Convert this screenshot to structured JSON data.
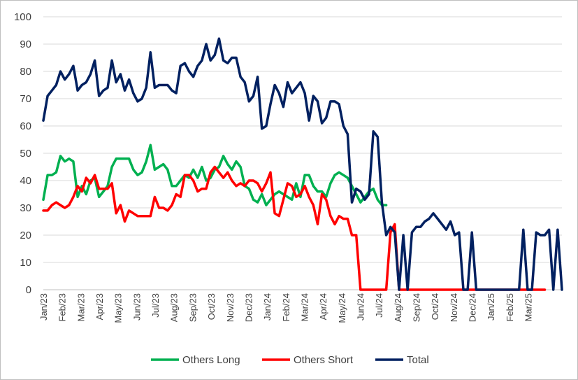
{
  "chart_data": {
    "type": "line",
    "title": "",
    "xlabel": "",
    "ylabel": "",
    "ylim": [
      0,
      100
    ],
    "yticks": [
      0,
      10,
      20,
      30,
      40,
      50,
      60,
      70,
      80,
      90,
      100
    ],
    "month_labels": [
      "Jan/23",
      "Feb/23",
      "Mar/23",
      "Apr/23",
      "May/23",
      "Jun/23",
      "Jul/23",
      "Aug/23",
      "Sep/23",
      "Oct/23",
      "Nov/23",
      "Dec/23",
      "Jan/24",
      "Feb/24",
      "Mar/24",
      "Apr/24",
      "May/24",
      "Jun/24",
      "Jul/24",
      "Aug/24",
      "Sep/24",
      "Oct/24",
      "Nov/24",
      "Dec/24",
      "Jan/25",
      "Feb/25",
      "Mar/25"
    ],
    "weeks_per_month": 4.35,
    "legend_position": "bottom",
    "grid": true,
    "series": [
      {
        "name": "Others Long",
        "color": "#00b050",
        "values": [
          33,
          42,
          42,
          43,
          49,
          47,
          48,
          47,
          34,
          38,
          35,
          40,
          41,
          34,
          36,
          38,
          45,
          48,
          48,
          48,
          48,
          44,
          42,
          43,
          47,
          53,
          44,
          45,
          46,
          44,
          38,
          38,
          40,
          42,
          41,
          44,
          41,
          45,
          40,
          41,
          44,
          45,
          49,
          46,
          44,
          47,
          45,
          38,
          37,
          33,
          32,
          35,
          31,
          33,
          35,
          36,
          35,
          34,
          33,
          39,
          34,
          42,
          42,
          38,
          36,
          36,
          34,
          39,
          42,
          43,
          42,
          41,
          38,
          35,
          32,
          34,
          36,
          37,
          33,
          31,
          31
        ]
      },
      {
        "name": "Others Short",
        "color": "#ff0000",
        "values": [
          29,
          29,
          31,
          32,
          31,
          30,
          31,
          34,
          38,
          36,
          41,
          39,
          42,
          37,
          37,
          37,
          39,
          28,
          31,
          25,
          29,
          28,
          27,
          27,
          27,
          27,
          34,
          30,
          30,
          29,
          31,
          35,
          34,
          42,
          42,
          40,
          36,
          37,
          37,
          43,
          45,
          43,
          41,
          43,
          40,
          38,
          39,
          38,
          40,
          40,
          39,
          36,
          39,
          43,
          28,
          27,
          33,
          39,
          38,
          34,
          35,
          38,
          34,
          31,
          24,
          35,
          33,
          27,
          24,
          27,
          26,
          26,
          20,
          20,
          0,
          0,
          0,
          0,
          0,
          0,
          0,
          21,
          24,
          0,
          0,
          0,
          0,
          0,
          0,
          0,
          0,
          0,
          0,
          0,
          0,
          0,
          0,
          0,
          0,
          0,
          0,
          0,
          0,
          0,
          0,
          0,
          0,
          0,
          0,
          0,
          0,
          0,
          0,
          0,
          0,
          0,
          0,
          0
        ]
      },
      {
        "name": "Total",
        "color": "#002060",
        "values": [
          62,
          71,
          73,
          75,
          80,
          77,
          79,
          82,
          73,
          75,
          76,
          79,
          84,
          71,
          73,
          74,
          84,
          76,
          79,
          73,
          77,
          72,
          69,
          70,
          74,
          87,
          74,
          75,
          75,
          75,
          73,
          72,
          82,
          83,
          80,
          78,
          82,
          84,
          90,
          84,
          86,
          92,
          84,
          83,
          85,
          85,
          78,
          76,
          69,
          71,
          78,
          59,
          60,
          68,
          75,
          72,
          67,
          76,
          72,
          74,
          76,
          72,
          62,
          71,
          69,
          61,
          63,
          69,
          69,
          68,
          60,
          57,
          32,
          37,
          36,
          33,
          35,
          58,
          56,
          32,
          20,
          23,
          21,
          0,
          20,
          0,
          21,
          23,
          23,
          25,
          26,
          28,
          26,
          24,
          22,
          25,
          20,
          21,
          0,
          0,
          21,
          0,
          0,
          0,
          0,
          0,
          0,
          0,
          0,
          0,
          0,
          0,
          22,
          0,
          0,
          21,
          20,
          20,
          22,
          0,
          22,
          0
        ]
      }
    ]
  }
}
